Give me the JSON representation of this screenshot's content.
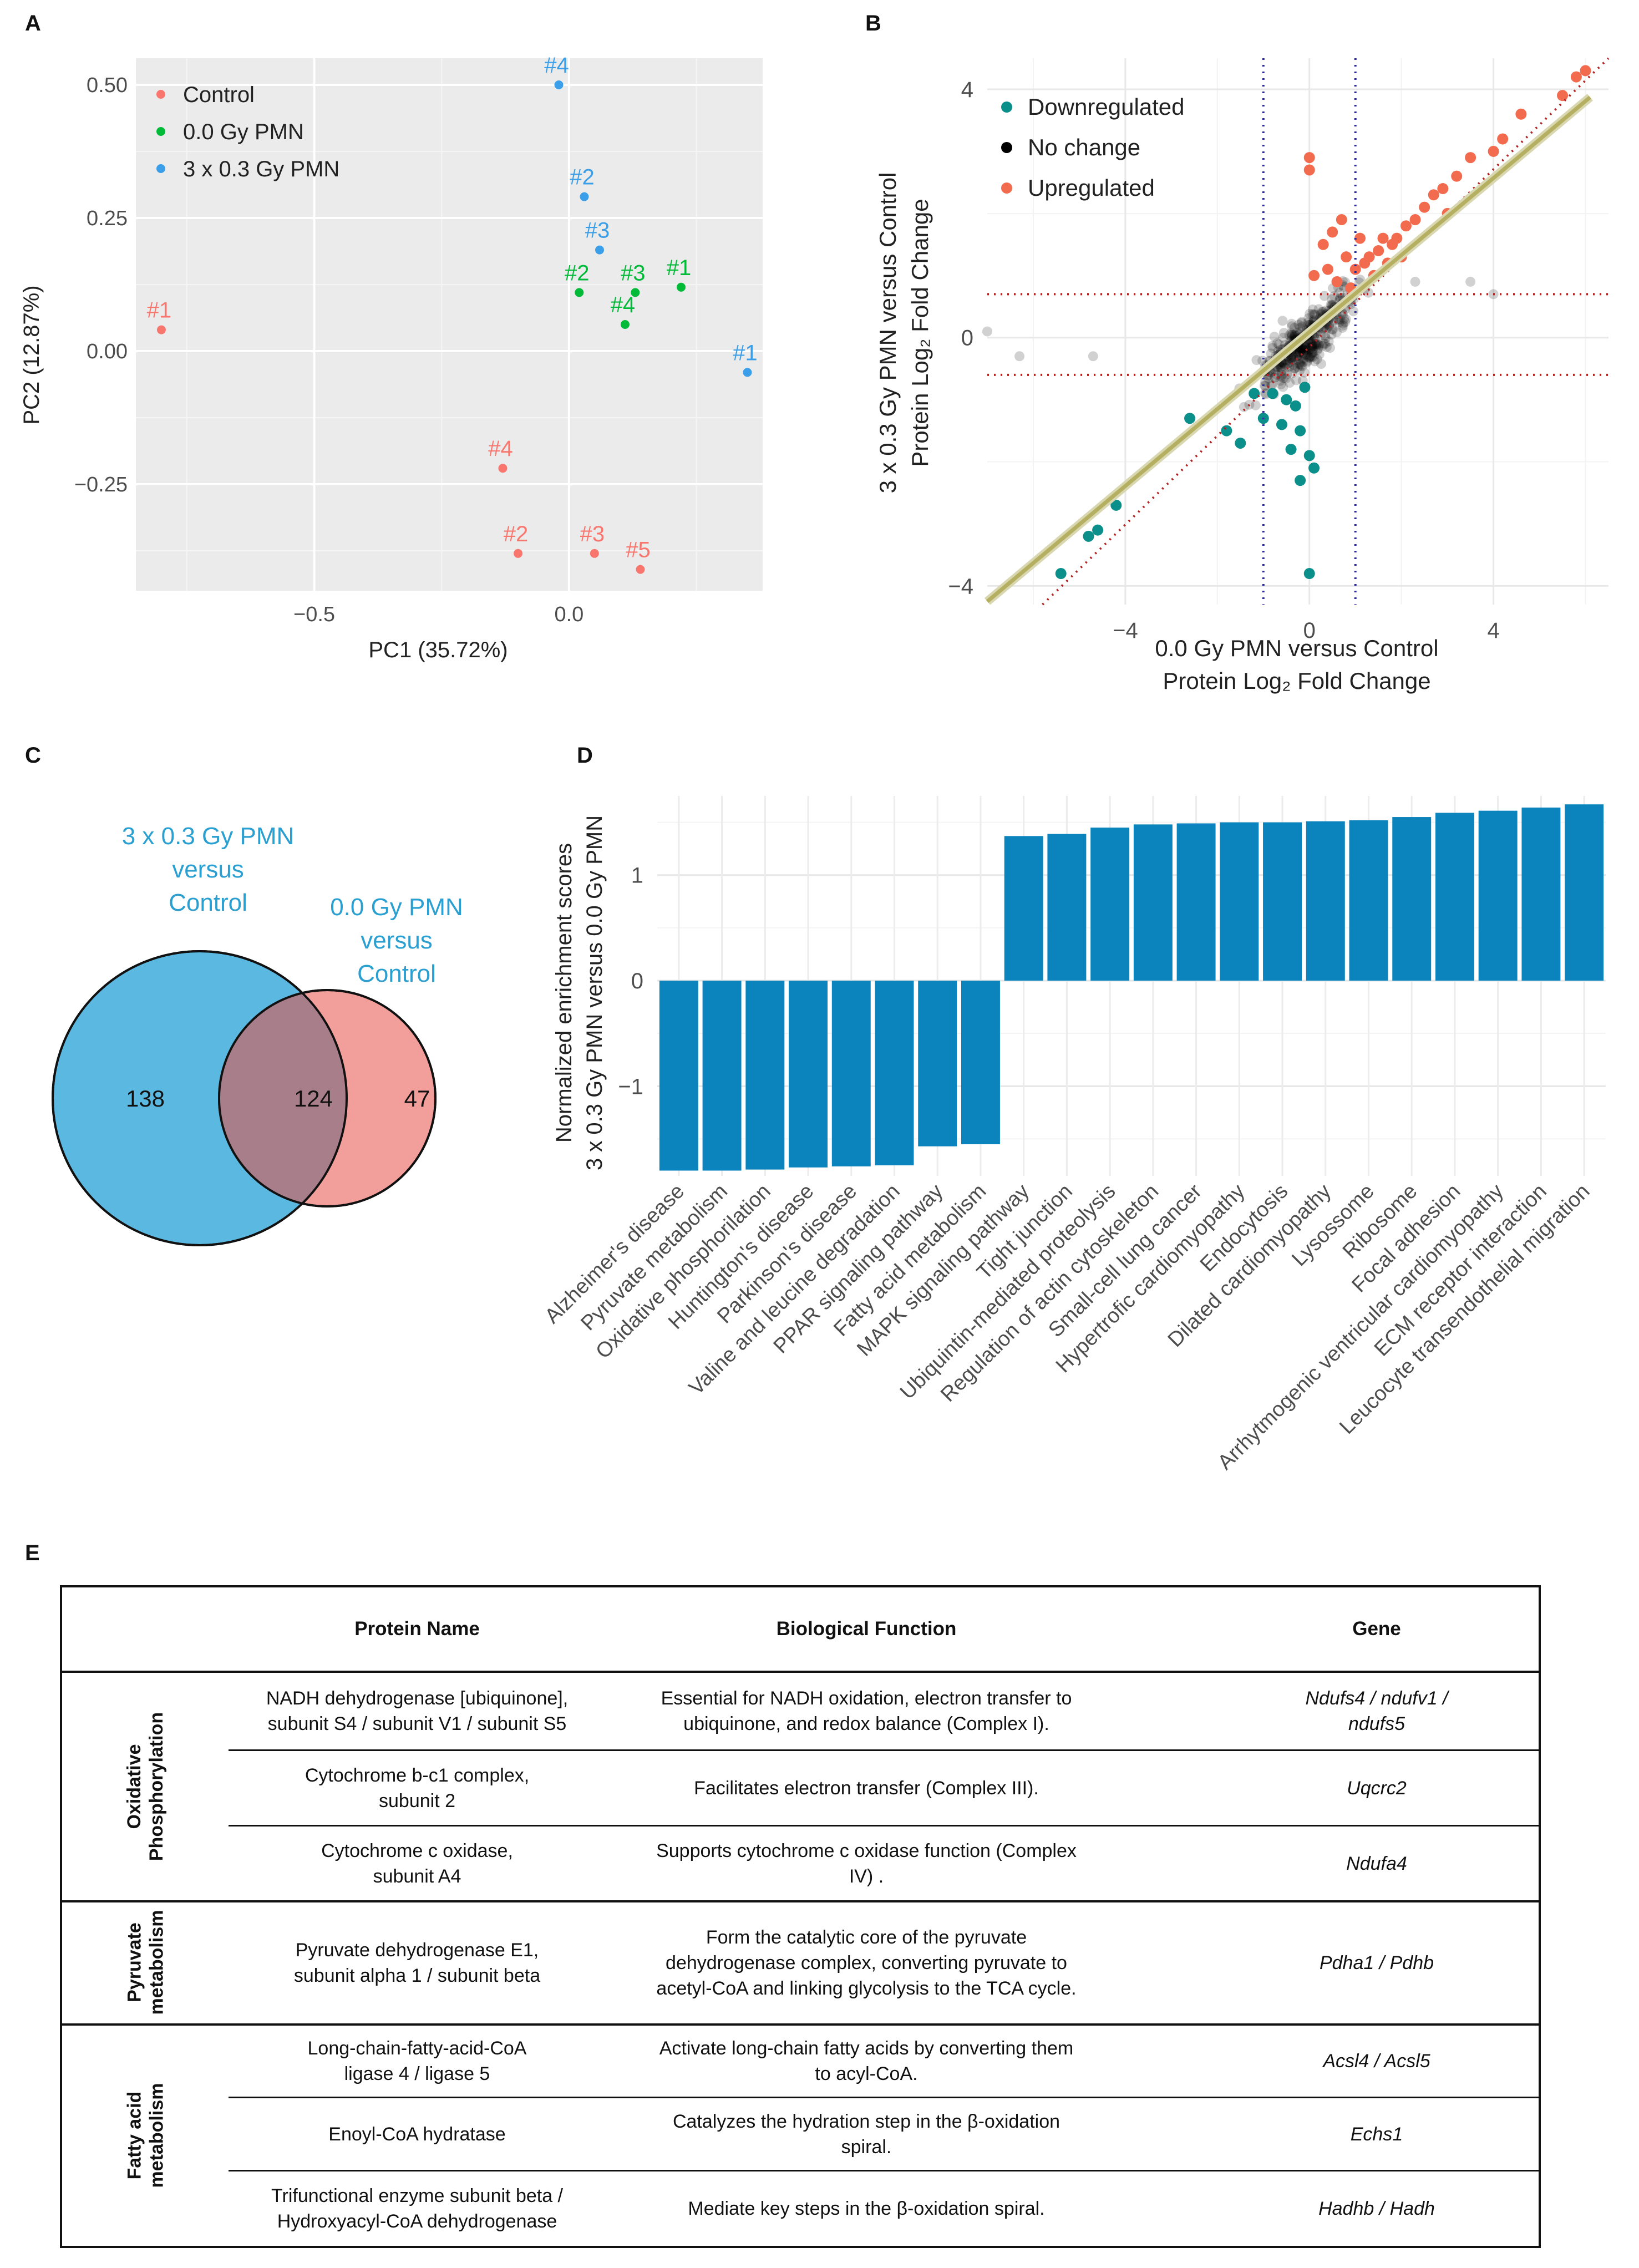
{
  "panels": {
    "a": "A",
    "b": "B",
    "c": "C",
    "d": "D",
    "e": "E"
  },
  "chart_data": [
    {
      "type": "scatter",
      "panel": "A",
      "xlabel": "PC1 (35.72%)",
      "ylabel": "PC2 (12.87%)",
      "xlim": [
        -0.85,
        0.38
      ],
      "ylim": [
        -0.45,
        0.55
      ],
      "xticks": [
        -0.5,
        0.0
      ],
      "xtick_labels": [
        "−0.5",
        "0.0"
      ],
      "yticks": [
        0.5,
        0.25,
        0.0,
        -0.25
      ],
      "ytick_labels": [
        "0.50",
        "0.25",
        "0.00",
        "−0.25"
      ],
      "legend": [
        {
          "label": "Control",
          "color": "#f8766d"
        },
        {
          "label": "0.0 Gy PMN",
          "color": "#00ba38"
        },
        {
          "label": "3 x 0.3 Gy PMN",
          "color": "#3a9fe8"
        }
      ],
      "points": [
        {
          "group": 0,
          "label": "#1",
          "x": -0.8,
          "y": 0.04
        },
        {
          "group": 0,
          "label": "#4",
          "x": -0.13,
          "y": -0.22
        },
        {
          "group": 0,
          "label": "#2",
          "x": -0.1,
          "y": -0.38
        },
        {
          "group": 0,
          "label": "#3",
          "x": 0.05,
          "y": -0.38
        },
        {
          "group": 0,
          "label": "#5",
          "x": 0.14,
          "y": -0.41
        },
        {
          "group": 1,
          "label": "#2",
          "x": 0.02,
          "y": 0.11
        },
        {
          "group": 1,
          "label": "#3",
          "x": 0.13,
          "y": 0.11
        },
        {
          "group": 1,
          "label": "#4",
          "x": 0.11,
          "y": 0.05
        },
        {
          "group": 1,
          "label": "#1",
          "x": 0.22,
          "y": 0.12
        },
        {
          "group": 2,
          "label": "#4",
          "x": -0.02,
          "y": 0.5
        },
        {
          "group": 2,
          "label": "#2",
          "x": 0.03,
          "y": 0.29
        },
        {
          "group": 2,
          "label": "#3",
          "x": 0.06,
          "y": 0.19
        },
        {
          "group": 2,
          "label": "#1",
          "x": 0.35,
          "y": -0.04
        }
      ]
    },
    {
      "type": "scatter",
      "panel": "B",
      "xlabel_line1": "0.0 Gy PMN versus Control",
      "xlabel_line2": "Protein Log₂ Fold Change",
      "ylabel_line1": "3 x 0.3 Gy PMN versus Control",
      "ylabel_line2": "Protein Log₂ Fold Change",
      "xlim": [
        -7,
        6.5
      ],
      "ylim": [
        -4.3,
        4.5
      ],
      "xticks": [
        -4,
        0,
        4
      ],
      "xtick_labels": [
        "−4",
        "0",
        "4"
      ],
      "yticks": [
        4,
        0,
        -4
      ],
      "ytick_labels": [
        "4",
        "0",
        "−4"
      ],
      "thresholds": {
        "x": [
          -1,
          1
        ],
        "y": [
          -0.6,
          0.7
        ]
      },
      "fit_line": {
        "slope": 0.62,
        "intercept": 0.09
      },
      "legend": [
        {
          "label": "Downregulated",
          "color": "#0b8f8a"
        },
        {
          "label": "No change",
          "color": "#000000"
        },
        {
          "label": "Upregulated",
          "color": "#f26b4f"
        }
      ],
      "up_points": [
        [
          6.0,
          4.3
        ],
        [
          5.8,
          4.2
        ],
        [
          5.5,
          3.9
        ],
        [
          4.6,
          3.6
        ],
        [
          4.2,
          3.2
        ],
        [
          4.0,
          3.0
        ],
        [
          3.5,
          2.9
        ],
        [
          3.2,
          2.6
        ],
        [
          2.9,
          2.4
        ],
        [
          2.7,
          2.3
        ],
        [
          2.5,
          2.1
        ],
        [
          2.3,
          1.9
        ],
        [
          2.1,
          1.8
        ],
        [
          1.9,
          1.6
        ],
        [
          1.8,
          1.5
        ],
        [
          1.6,
          1.6
        ],
        [
          1.5,
          1.4
        ],
        [
          1.3,
          1.3
        ],
        [
          1.2,
          1.2
        ],
        [
          1.0,
          1.1
        ],
        [
          0.8,
          1.3
        ],
        [
          0.5,
          1.7
        ],
        [
          0.3,
          1.5
        ],
        [
          0.1,
          1.0
        ],
        [
          0.0,
          2.9
        ],
        [
          0.0,
          2.7
        ],
        [
          0.6,
          0.9
        ],
        [
          1.4,
          1.0
        ],
        [
          2.0,
          1.3
        ],
        [
          1.1,
          1.6
        ],
        [
          0.9,
          0.8
        ],
        [
          0.4,
          1.1
        ],
        [
          3.0,
          2.0
        ],
        [
          1.7,
          1.2
        ],
        [
          0.7,
          1.9
        ]
      ],
      "down_points": [
        [
          -5.4,
          -3.8
        ],
        [
          -4.8,
          -3.2
        ],
        [
          -4.6,
          -3.1
        ],
        [
          -4.2,
          -2.7
        ],
        [
          -2.6,
          -1.3
        ],
        [
          -1.8,
          -1.5
        ],
        [
          -1.5,
          -1.7
        ],
        [
          -1.0,
          -1.3
        ],
        [
          -0.6,
          -1.4
        ],
        [
          -0.4,
          -1.8
        ],
        [
          -0.2,
          -1.5
        ],
        [
          0.0,
          -1.9
        ],
        [
          0.1,
          -2.1
        ],
        [
          0.0,
          -3.8
        ],
        [
          -0.3,
          -1.1
        ],
        [
          -0.8,
          -0.9
        ],
        [
          -1.2,
          -0.9
        ],
        [
          -0.1,
          -0.8
        ],
        [
          -0.5,
          -1.0
        ],
        [
          -0.2,
          -2.3
        ]
      ],
      "nochange_count": 380,
      "nochange_grey": [
        [
          -7.0,
          0.1
        ],
        [
          -6.3,
          -0.3
        ],
        [
          -4.7,
          -0.3
        ],
        [
          3.5,
          0.9
        ],
        [
          4.0,
          0.7
        ],
        [
          2.3,
          0.9
        ]
      ]
    },
    {
      "type": "bar",
      "panel": "D",
      "ylabel_line1": "Normalized enrichment scores",
      "ylabel_line2": "3 x 0.3 Gy PMN versus 0.0 Gy PMN",
      "ylim": [
        -1.85,
        1.75
      ],
      "yticks": [
        1,
        0,
        -1
      ],
      "ytick_labels": [
        "1",
        "0",
        "−1"
      ],
      "color": "#0b84bd",
      "categories": [
        "Alzheimer's disease",
        "Pyruvate metabolism",
        "Oxidative phosphorilation",
        "Huntington's disease",
        "Parkinson's disease",
        "Valine and leucine degradation",
        "PPAR signaling pathway",
        "Fatty acid metabolism",
        "MAPK signaling pathway",
        "Tight junction",
        "Ubiquintin-mediated proteolysis",
        "Regulation of actin cytoskeleton",
        "Small-cell lung cancer",
        "Hypertrofic cardiomyopathy",
        "Endocytosis",
        "Dilated cardiomyopathy",
        "Lysossome",
        "Ribosome",
        "Focal adhesion",
        "Arrhytmogenic ventricular cardiomyopathy",
        "ECM receptor interaction",
        "Leucocyte transendothelial migration"
      ],
      "values": [
        -1.8,
        -1.8,
        -1.79,
        -1.77,
        -1.76,
        -1.75,
        -1.57,
        -1.55,
        1.37,
        1.39,
        1.45,
        1.48,
        1.49,
        1.5,
        1.5,
        1.51,
        1.52,
        1.55,
        1.59,
        1.61,
        1.64,
        1.67
      ]
    }
  ],
  "venn": {
    "label_left": "3 x 0.3 Gy PMN\nversus\nControl",
    "label_right": "0.0 Gy PMN\nversus\nControl",
    "only_left": "138",
    "both": "124",
    "only_right": "47",
    "color_left": "#5bb8e0",
    "color_right": "#f29e9a",
    "color_both": "#a97e8b"
  },
  "table": {
    "headers": {
      "protein": "Protein Name",
      "function": "Biological Function",
      "gene": "Gene"
    },
    "groups": [
      {
        "name": "Oxidative\nPhosphorylation"
      },
      {
        "name": "Pyruvate\nmetabolism"
      },
      {
        "name": "Fatty acid\nmetabolism"
      }
    ],
    "rows": [
      {
        "protein": "NADH dehydrogenase [ubiquinone],\nsubunit S4 / subunit V1 / subunit S5",
        "function": "Essential for NADH oxidation, electron transfer to\nubiquinone, and redox balance (Complex I).",
        "gene": "Ndufs4 / ndufv1 /\nndufs5"
      },
      {
        "protein": "Cytochrome b-c1 complex,\nsubunit 2",
        "function": "Facilitates electron transfer (Complex III).",
        "gene": "Uqcrc2"
      },
      {
        "protein": "Cytochrome c oxidase,\nsubunit A4",
        "function": "Supports cytochrome c oxidase function (Complex\nIV) .",
        "gene": "Ndufa4"
      },
      {
        "protein": "Pyruvate dehydrogenase E1,\nsubunit alpha 1 / subunit beta",
        "function": "Form the catalytic core of the pyruvate\ndehydrogenase complex, converting pyruvate to\nacetyl-CoA and linking glycolysis to the TCA cycle.",
        "gene": "Pdha1 / Pdhb"
      },
      {
        "protein": "Long-chain-fatty-acid-CoA\nligase 4 / ligase 5",
        "function": "Activate long-chain fatty acids by converting them\nto acyl-CoA.",
        "gene": "Acsl4 / Acsl5"
      },
      {
        "protein": "Enoyl-CoA hydratase",
        "function": "Catalyzes the hydration step in the β-oxidation\nspiral.",
        "gene": "Echs1"
      },
      {
        "protein": "Trifunctional enzyme subunit beta /\nHydroxyacyl-CoA dehydrogenase",
        "function": "Mediate key steps in the β-oxidation spiral.",
        "gene": "Hadhb / Hadh"
      }
    ]
  }
}
